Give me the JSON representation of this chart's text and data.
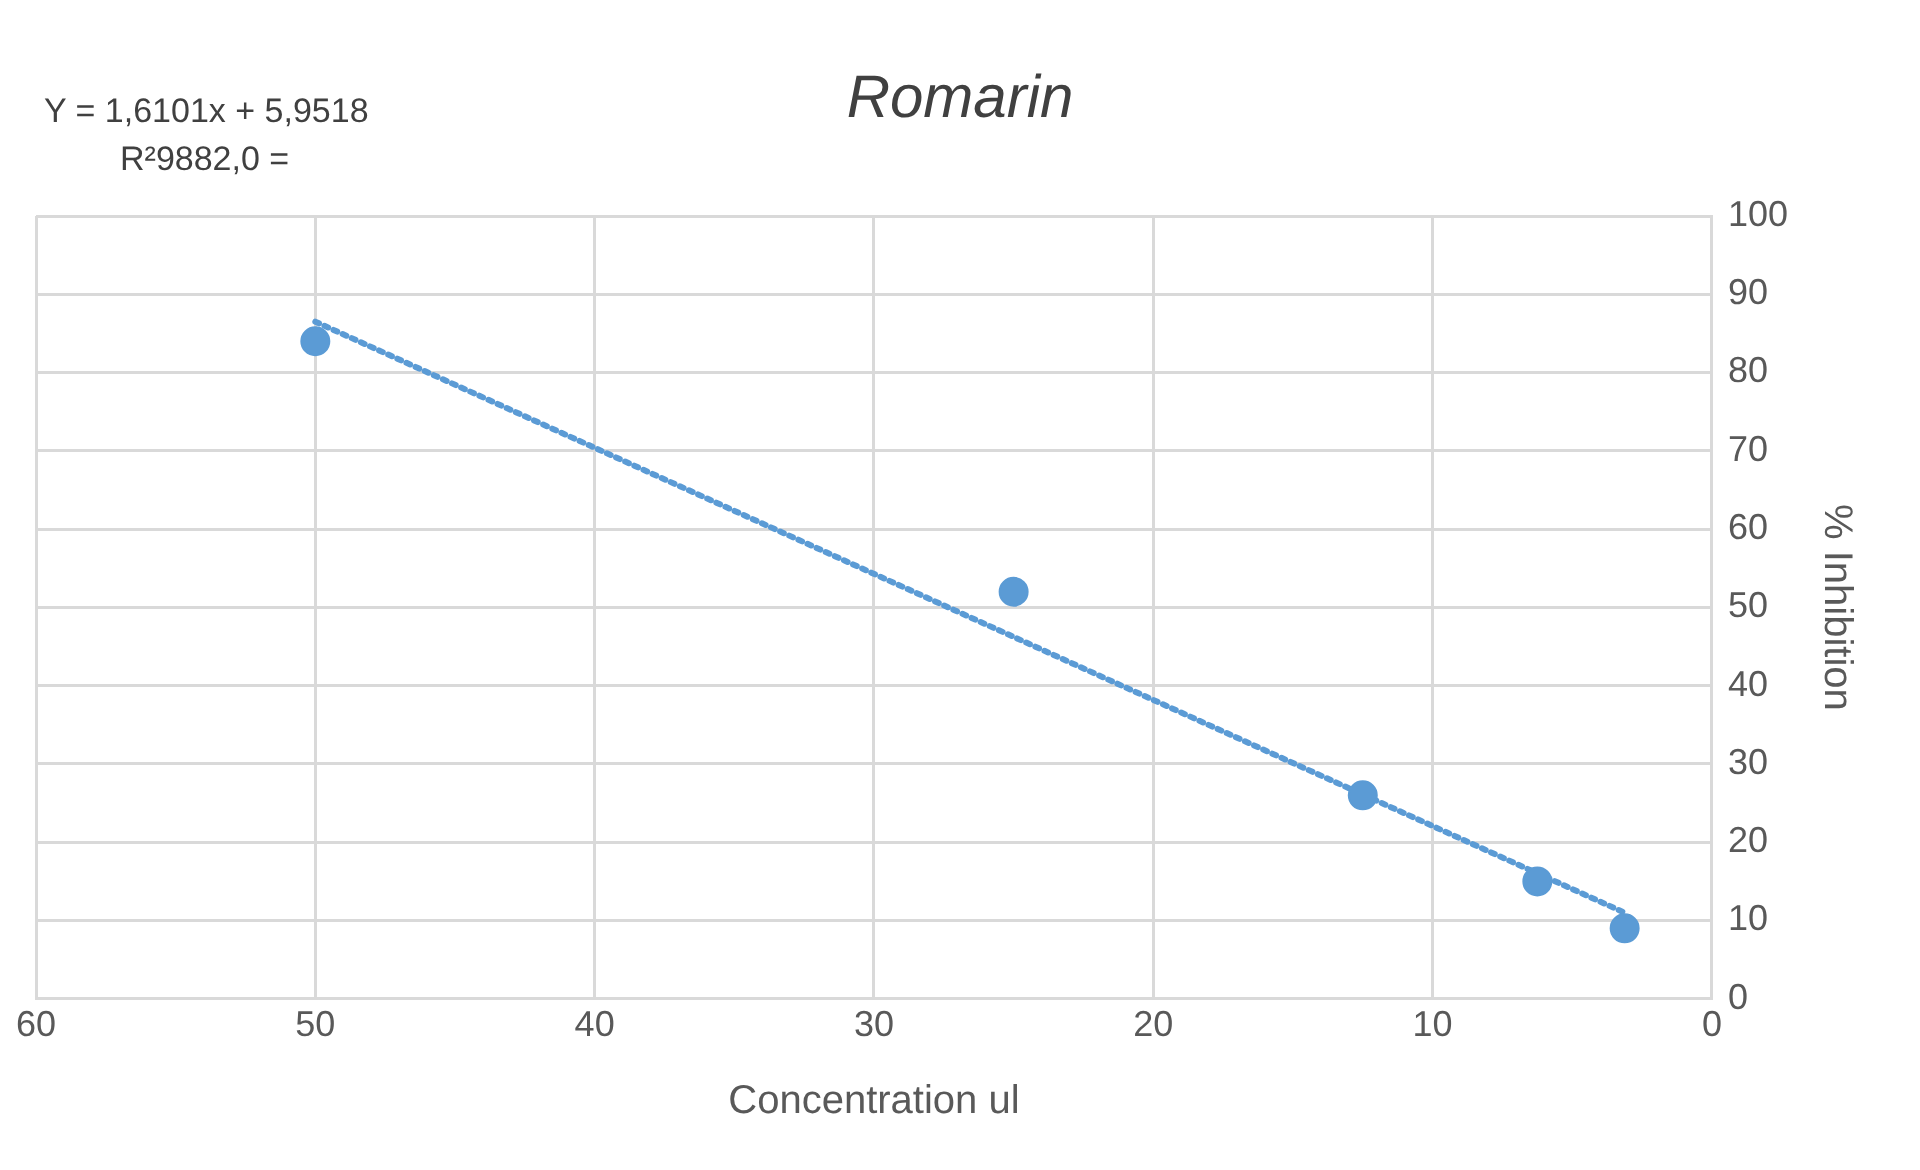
{
  "chart_data": {
    "type": "scatter",
    "title": "Romarin",
    "xlabel": "Concentration ul",
    "ylabel": "% Inhibition",
    "annotations": [
      "Y = 1,6101x + 5,9518",
      "R²9882,0 ="
    ],
    "series": [
      {
        "type": "scatter",
        "x": [
          50,
          25,
          12.5,
          6.25,
          3.125
        ],
        "values": [
          84,
          52,
          26,
          15,
          9
        ],
        "color": "#5b9bd5",
        "marker": "circle"
      },
      {
        "type": "line",
        "x": [
          50,
          3.125
        ],
        "values": [
          86.5,
          11
        ],
        "color": "#5b9bd5",
        "marker": "none",
        "line_style": "dotted"
      }
    ],
    "xlim": [
      60,
      0
    ],
    "xticks": [
      0,
      10,
      20,
      30,
      40,
      50,
      60
    ],
    "ylim": [
      0,
      100
    ],
    "yticks": [
      0,
      10,
      20,
      30,
      40,
      50,
      60,
      70,
      80,
      90,
      100
    ],
    "grid": true,
    "legend": false
  }
}
